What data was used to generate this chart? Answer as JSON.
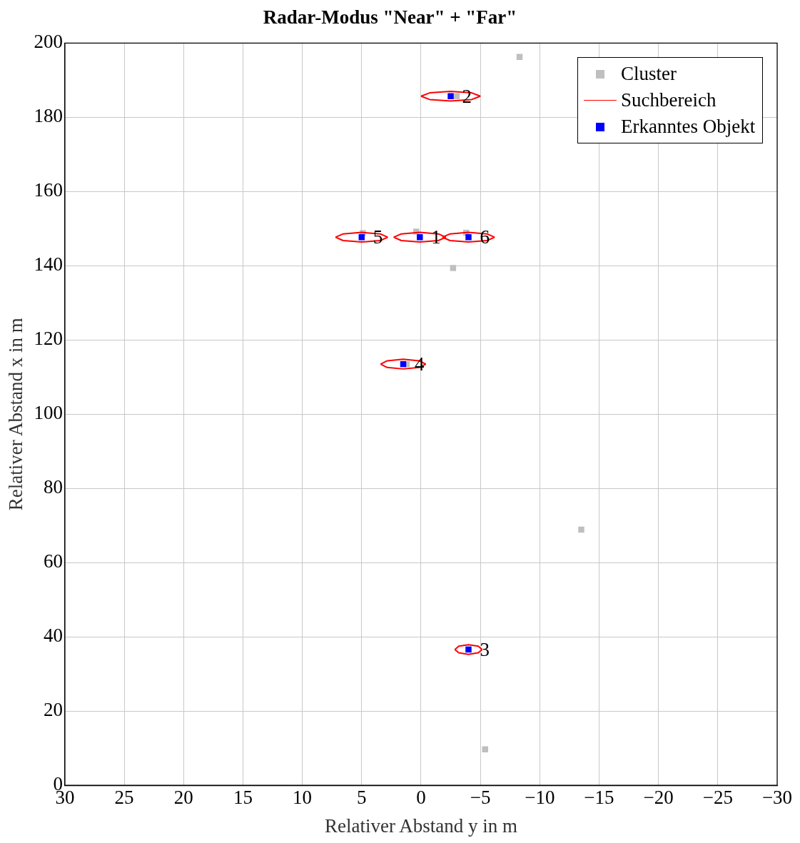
{
  "chart_data": {
    "type": "scatter",
    "title": "Radar-Modus \"Near\" + \"Far\"",
    "xlabel": "Relativer Abstand y in m",
    "ylabel": "Relativer Abstand x in m",
    "xlim": [
      30,
      -30
    ],
    "xticks": [
      30,
      25,
      20,
      15,
      10,
      5,
      0,
      {
        "value": -5,
        "label": "−5"
      },
      {
        "value": -10,
        "label": "−10"
      },
      {
        "value": -15,
        "label": "−15"
      },
      {
        "value": -20,
        "label": "−20"
      },
      {
        "value": -25,
        "label": "−25"
      },
      {
        "value": -30,
        "label": "−30"
      }
    ],
    "ylim": [
      0,
      200
    ],
    "yticks": [
      0,
      20,
      40,
      60,
      80,
      100,
      120,
      140,
      160,
      180,
      200
    ],
    "grid": true,
    "legend": "top right",
    "series": [
      {
        "name": "Cluster",
        "type": "scatter",
        "marker": "square",
        "color": "#bfbfbf",
        "x": [
          -8.3,
          -13.5,
          -5.4,
          -2.7,
          0.4,
          -3.8,
          4.9,
          -3.0,
          1.2
        ],
        "values": [
          196.3,
          68.9,
          9.7,
          139.4,
          149.2,
          148.9,
          148.8,
          185.7,
          113.5
        ]
      },
      {
        "name": "Suchbereich",
        "type": "line",
        "marker": "none",
        "line_style": "solid",
        "color": "#ff0000",
        "x": [
          0,
          -0.73,
          -2.5,
          -4.27,
          -5
        ],
        "values": [
          185.7,
          186.6,
          187.0,
          186.6,
          185.7
        ]
      },
      {
        "type": "line",
        "marker": "none",
        "line_style": "solid",
        "color": "#ff0000",
        "x": [
          0,
          -0.73,
          -2.5,
          -4.27,
          -5
        ],
        "values": [
          185.7,
          184.8,
          184.4,
          184.8,
          185.7
        ]
      },
      {
        "type": "line",
        "marker": "none",
        "line_style": "solid",
        "color": "#ff0000",
        "x": [
          7.2,
          6.56,
          5.0,
          3.44,
          2.8
        ],
        "values": [
          147.7,
          148.6,
          149.0,
          148.6,
          147.7
        ]
      },
      {
        "type": "line",
        "marker": "none",
        "line_style": "solid",
        "color": "#ff0000",
        "x": [
          7.2,
          6.56,
          5.0,
          3.44,
          2.8
        ],
        "values": [
          147.7,
          146.8,
          146.4,
          146.8,
          147.7
        ]
      },
      {
        "type": "line",
        "marker": "none",
        "line_style": "solid",
        "color": "#ff0000",
        "x": [
          2.3,
          1.66,
          0.1,
          -1.46,
          -2.1
        ],
        "values": [
          147.7,
          148.6,
          149.0,
          148.6,
          147.7
        ]
      },
      {
        "type": "line",
        "marker": "none",
        "line_style": "solid",
        "color": "#ff0000",
        "x": [
          2.3,
          1.66,
          0.1,
          -1.46,
          -2.1
        ],
        "values": [
          147.7,
          146.8,
          146.4,
          146.8,
          147.7
        ]
      },
      {
        "type": "line",
        "marker": "none",
        "line_style": "solid",
        "color": "#ff0000",
        "x": [
          -1.8,
          -2.44,
          -4.0,
          -5.56,
          -6.2
        ],
        "values": [
          147.7,
          148.6,
          149.0,
          148.6,
          147.7
        ]
      },
      {
        "type": "line",
        "marker": "none",
        "line_style": "solid",
        "color": "#ff0000",
        "x": [
          -1.8,
          -2.44,
          -4.0,
          -5.56,
          -6.2
        ],
        "values": [
          147.7,
          146.8,
          146.4,
          146.8,
          147.7
        ]
      },
      {
        "type": "line",
        "marker": "none",
        "line_style": "solid",
        "color": "#ff0000",
        "x": [
          3.4,
          2.85,
          1.5,
          0.15,
          -0.4
        ],
        "values": [
          113.5,
          114.4,
          114.8,
          114.4,
          113.5
        ]
      },
      {
        "type": "line",
        "marker": "none",
        "line_style": "solid",
        "color": "#ff0000",
        "x": [
          3.4,
          2.85,
          1.5,
          0.15,
          -0.4
        ],
        "values": [
          113.5,
          112.6,
          112.2,
          112.6,
          113.5
        ]
      },
      {
        "type": "line",
        "marker": "none",
        "line_style": "solid",
        "color": "#ff0000",
        "x": [
          -2.85,
          -3.18,
          -4.0,
          -4.82,
          -5.15
        ],
        "values": [
          36.6,
          37.5,
          37.9,
          37.5,
          36.6
        ]
      },
      {
        "type": "line",
        "marker": "none",
        "line_style": "solid",
        "color": "#ff0000",
        "x": [
          -2.85,
          -3.18,
          -4.0,
          -4.82,
          -5.15
        ],
        "values": [
          36.6,
          35.7,
          35.3,
          35.7,
          36.6
        ]
      },
      {
        "name": "Erkanntes Objekt",
        "type": "scatter",
        "marker": "square",
        "color": "#0000ff",
        "x": [
          0.1,
          -2.5,
          -4.0,
          1.5,
          5.0,
          -4.0
        ],
        "values": [
          147.7,
          185.7,
          36.6,
          113.5,
          147.7,
          147.7
        ]
      }
    ],
    "annotations": [
      {
        "text": "1",
        "x": 0.1,
        "y": 147.7
      },
      {
        "text": "2",
        "x": -2.5,
        "y": 185.7
      },
      {
        "text": "3",
        "x": -4.0,
        "y": 36.6
      },
      {
        "text": "4",
        "x": 1.5,
        "y": 113.5
      },
      {
        "text": "5",
        "x": 5.0,
        "y": 147.7
      },
      {
        "text": "6",
        "x": -4.0,
        "y": 147.7
      }
    ]
  }
}
